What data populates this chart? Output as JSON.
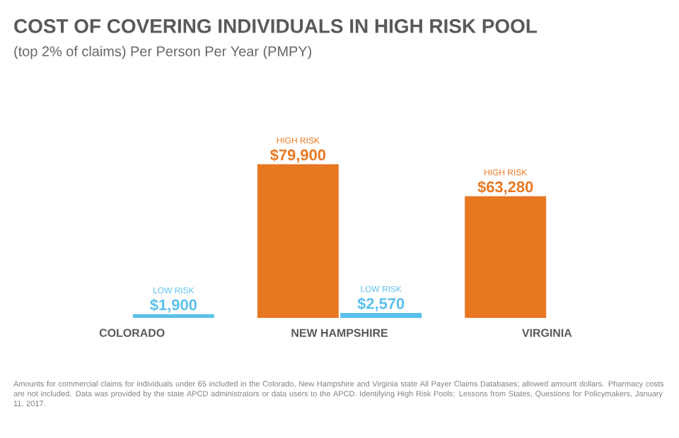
{
  "chart_data": {
    "type": "bar",
    "title": "COST OF COVERING INDIVIDUALS IN HIGH RISK POOL",
    "subtitle": "(top 2% of claims) Per Person Per Year (PMPY)",
    "categories": [
      "COLORADO",
      "NEW HAMPSHIRE",
      "VIRGINIA"
    ],
    "series": [
      {
        "name": "HIGH RISK",
        "color": "#e87722",
        "values": [
          null,
          79900,
          63280
        ],
        "value_labels": [
          null,
          "$79,900",
          "$63,280"
        ]
      },
      {
        "name": "LOW RISK",
        "color": "#5bc0eb",
        "values": [
          1900,
          2570,
          null
        ],
        "value_labels": [
          "$1,900",
          "$2,570",
          null
        ]
      }
    ],
    "annotations": [
      "Amounts for commercial claims for individuals under 65 included in the Colorado, New Hampshire and Virginia state All Payer Claims Databases; allowed amount dollars. Pharmacy costs are not included. Data was provided by the state APCD administrators or data users to the APCD. Identifying High Risk Pools: Lessons from States, Questions for Policymakers, January 11, 2017."
    ]
  }
}
